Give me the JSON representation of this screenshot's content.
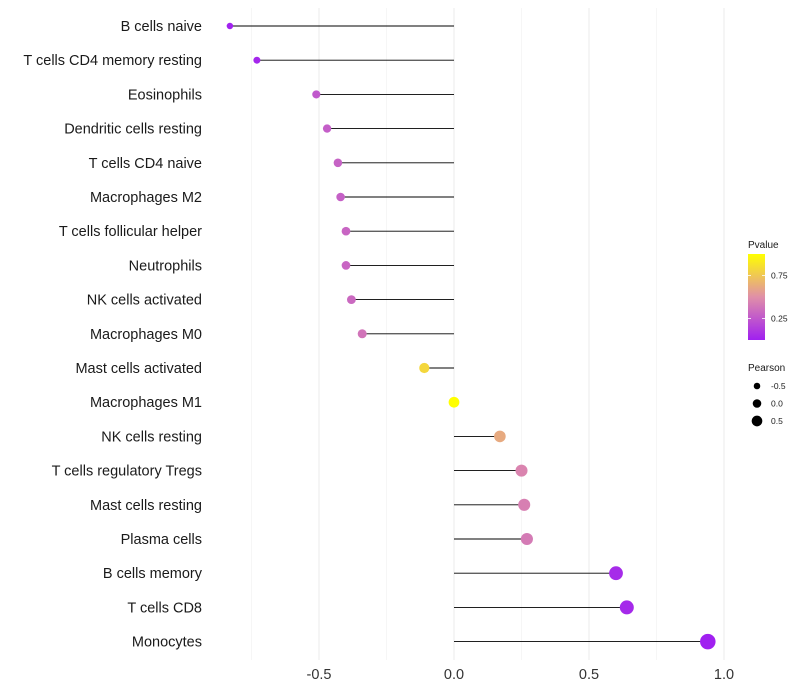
{
  "chart_data": {
    "type": "lollipop",
    "title": "",
    "xlabel": "",
    "ylabel": "",
    "xlim": [
      -0.92,
      1.02
    ],
    "xticks": [
      -0.5,
      0.0,
      0.5,
      1.0
    ],
    "xtick_labels": [
      "-0.5",
      "0.0",
      "0.5",
      "1.0"
    ],
    "grid": true,
    "categories": [
      "B cells naive",
      "T cells CD4 memory resting",
      "Eosinophils",
      "Dendritic cells resting",
      "T cells CD4 naive",
      "Macrophages M2",
      "T cells follicular helper",
      "Neutrophils",
      "NK cells activated",
      "Macrophages M0",
      "Mast cells activated",
      "Macrophages M1",
      "NK cells resting",
      "T cells regulatory  Tregs",
      "Mast cells resting",
      "Plasma cells",
      "B cells memory",
      "T cells CD8",
      "Monocytes"
    ],
    "pearson": [
      -0.83,
      -0.73,
      -0.51,
      -0.47,
      -0.43,
      -0.42,
      -0.4,
      -0.4,
      -0.38,
      -0.34,
      -0.11,
      0.0,
      0.17,
      0.25,
      0.26,
      0.27,
      0.6,
      0.64,
      0.94
    ],
    "pvalue": [
      0.01,
      0.03,
      0.25,
      0.28,
      0.3,
      0.29,
      0.31,
      0.31,
      0.33,
      0.38,
      0.82,
      1.0,
      0.62,
      0.45,
      0.43,
      0.41,
      0.05,
      0.04,
      0.001
    ],
    "legend": {
      "color_title": "Pvalue",
      "color_ticks": [
        0.25,
        0.75
      ],
      "color_tick_labels": [
        "0.25",
        "0.75"
      ],
      "color_low": "#a020f0",
      "color_high": "#ffff00",
      "size_title": "Pearson",
      "size_ticks": [
        -0.5,
        0.0,
        0.5
      ],
      "size_tick_labels": [
        "-0.5",
        "0.0",
        "0.5"
      ],
      "placement": "right"
    }
  }
}
